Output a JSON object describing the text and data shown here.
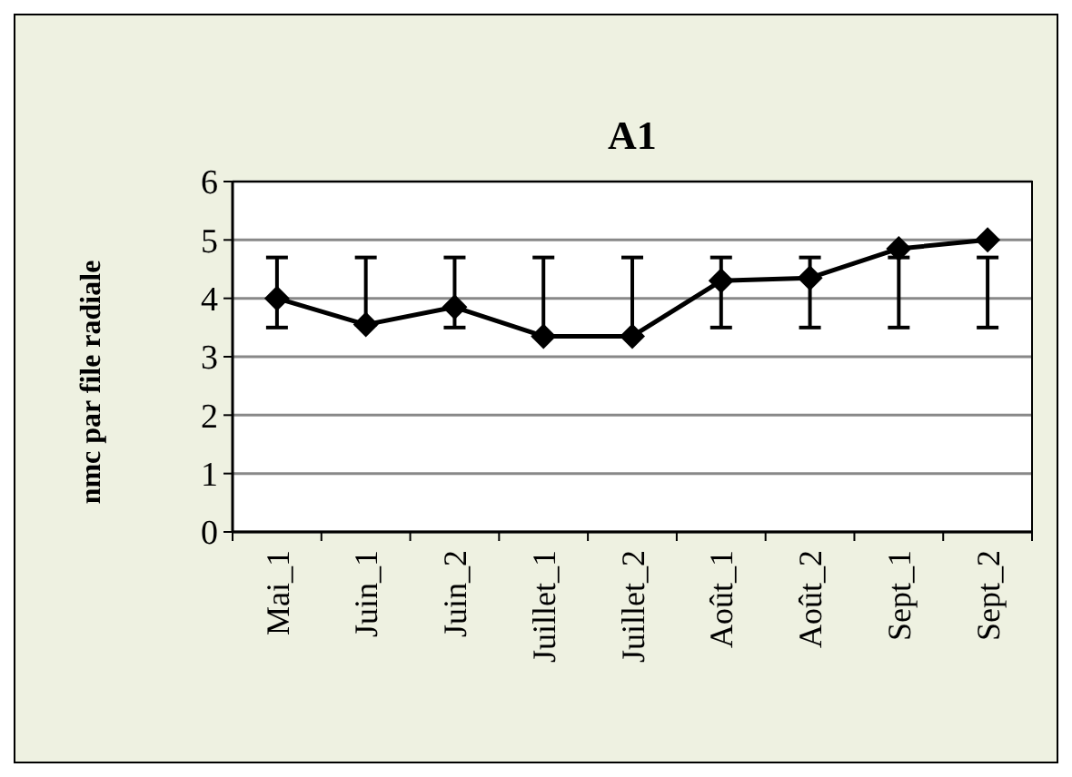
{
  "chart_data": {
    "type": "line",
    "title": "A1",
    "ylabel": "nmc par file radiale",
    "categories": [
      "Mai_1",
      "Juin_1",
      "Juin_2",
      "Juillet_1",
      "Juillet_2",
      "Août_1",
      "Août_2",
      "Sept_1",
      "Sept_2"
    ],
    "series": [
      {
        "color": "#000000",
        "values": [
          4.0,
          3.55,
          3.85,
          3.35,
          3.35,
          4.3,
          4.35,
          4.85,
          5.0
        ],
        "errors": [
          [
            3.5,
            4.7
          ],
          [
            3.55,
            4.7
          ],
          [
            3.5,
            4.7
          ],
          [
            3.35,
            4.7
          ],
          [
            3.35,
            4.7
          ],
          [
            3.5,
            4.7
          ],
          [
            3.5,
            4.7
          ],
          [
            3.5,
            4.7
          ],
          [
            3.5,
            4.7
          ]
        ]
      }
    ],
    "ylim": [
      0,
      6
    ],
    "yticks": [
      0,
      1,
      2,
      3,
      4,
      5,
      6
    ],
    "grid": "y",
    "marker": "diamond",
    "line_style": "solid"
  }
}
